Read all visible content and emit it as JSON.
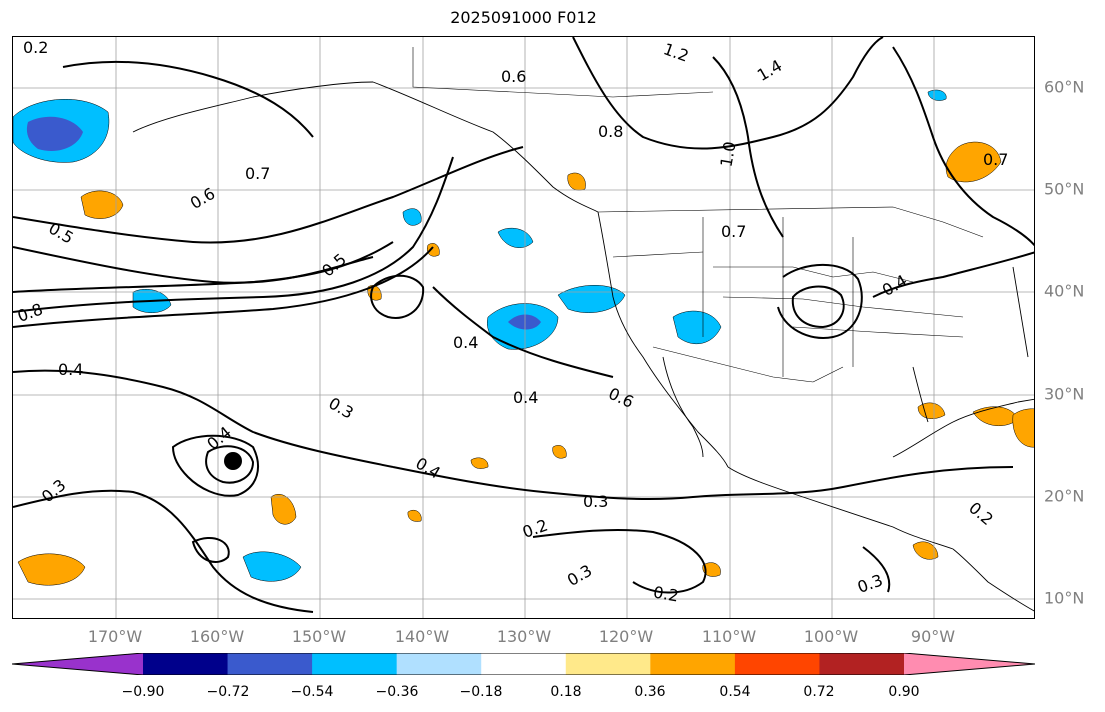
{
  "title": "2025091000 F012",
  "latitude_labels": [
    "60°N",
    "50°N",
    "40°N",
    "30°N",
    "20°N",
    "10°N"
  ],
  "longitude_labels": [
    "170°W",
    "160°W",
    "150°W",
    "140°W",
    "130°W",
    "120°W",
    "110°W",
    "100°W",
    "90°W"
  ],
  "contour_labels": [
    "0.2",
    "0.3",
    "0.4",
    "0.5",
    "0.6",
    "0.7",
    "0.8",
    "1.0",
    "1.2",
    "1.4"
  ],
  "colorbar": {
    "ticks": [
      "−0.90",
      "−0.72",
      "−0.54",
      "−0.36",
      "−0.18",
      "0.18",
      "0.36",
      "0.54",
      "0.72",
      "0.90"
    ],
    "colors": [
      "#9932cc",
      "#00008b",
      "#3a5acd",
      "#00bfff",
      "#b0e0ff",
      "#ffffff",
      "#ffe98a",
      "#ffa500",
      "#ff4500",
      "#b22222",
      "#ff8cb0"
    ]
  }
}
